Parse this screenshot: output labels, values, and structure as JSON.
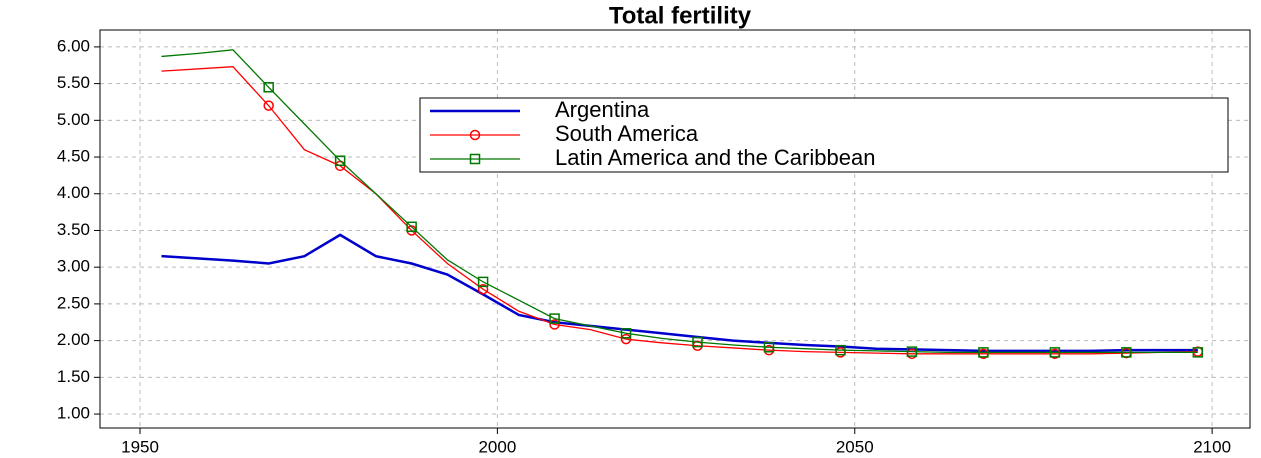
{
  "chart_data": {
    "type": "line",
    "title": "Total fertility",
    "x": [
      1953,
      1958,
      1963,
      1968,
      1973,
      1978,
      1983,
      1988,
      1993,
      1998,
      2003,
      2008,
      2013,
      2018,
      2023,
      2028,
      2033,
      2038,
      2043,
      2048,
      2053,
      2058,
      2063,
      2068,
      2073,
      2078,
      2083,
      2088,
      2093,
      2098
    ],
    "series": [
      {
        "name": "Argentina",
        "color": "#0000cc",
        "marker": "none",
        "values": [
          3.15,
          3.12,
          3.09,
          3.05,
          3.15,
          3.44,
          3.15,
          3.05,
          2.9,
          2.63,
          2.35,
          2.25,
          2.2,
          2.15,
          2.1,
          2.05,
          2.0,
          1.97,
          1.94,
          1.92,
          1.89,
          1.88,
          1.87,
          1.86,
          1.86,
          1.86,
          1.86,
          1.87,
          1.87,
          1.87
        ]
      },
      {
        "name": "South America",
        "color": "#ff0000",
        "marker": "circle",
        "values": [
          5.67,
          5.7,
          5.73,
          5.2,
          4.6,
          4.38,
          4.0,
          3.5,
          3.05,
          2.7,
          2.4,
          2.22,
          2.15,
          2.02,
          1.97,
          1.93,
          1.9,
          1.87,
          1.85,
          1.84,
          1.83,
          1.82,
          1.82,
          1.82,
          1.82,
          1.82,
          1.82,
          1.83,
          1.84,
          1.85
        ]
      },
      {
        "name": "Latin America and the Caribbean",
        "color": "#007700",
        "marker": "square",
        "values": [
          5.87,
          5.91,
          5.96,
          5.45,
          4.95,
          4.45,
          4.0,
          3.55,
          3.1,
          2.8,
          2.55,
          2.3,
          2.2,
          2.1,
          2.03,
          1.98,
          1.94,
          1.91,
          1.89,
          1.87,
          1.86,
          1.85,
          1.84,
          1.84,
          1.84,
          1.84,
          1.84,
          1.84,
          1.84,
          1.84
        ]
      }
    ],
    "xlim": [
      1944.4,
      2105.3
    ],
    "xticks": [
      1950,
      2000,
      2050,
      2100
    ],
    "ylim": [
      0.81,
      6.23
    ],
    "yticks": [
      {
        "value": 1,
        "label": "1.00"
      },
      {
        "value": 1.5,
        "label": "1.50"
      },
      {
        "value": 2,
        "label": "2.00"
      },
      {
        "value": 2.5,
        "label": "2.50"
      },
      {
        "value": 3,
        "label": "3.00"
      },
      {
        "value": 3.5,
        "label": "3.50"
      },
      {
        "value": 4,
        "label": "4.00"
      },
      {
        "value": 4.5,
        "label": "4.50"
      },
      {
        "value": 5,
        "label": "5.00"
      },
      {
        "value": 5.5,
        "label": "5.50"
      },
      {
        "value": 6,
        "label": "6.00"
      }
    ],
    "grid": true,
    "legend": "upper right"
  }
}
